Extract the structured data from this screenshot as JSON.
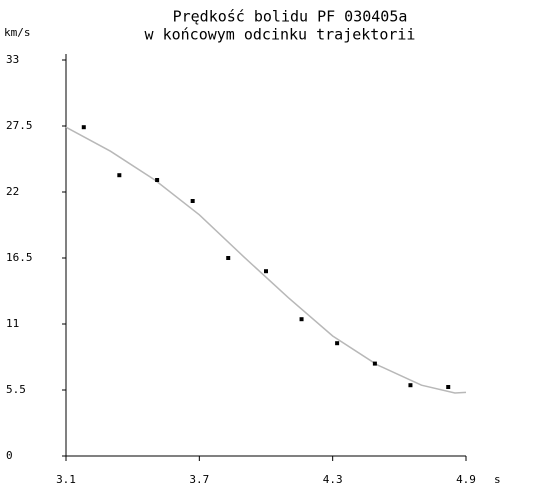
{
  "chart_data": {
    "type": "scatter",
    "title": [
      "Prędkość bolidu PF 030405a",
      "w końcowym odcinku trajektorii"
    ],
    "y_label": "km/s",
    "x_label": "s",
    "xlim": [
      3.1,
      4.9
    ],
    "xticks": [
      3.1,
      3.7,
      4.3,
      4.9
    ],
    "ylim": [
      0,
      33
    ],
    "yticks": [
      0,
      5.5,
      11,
      16.5,
      22,
      27.5,
      33
    ],
    "series": [
      {
        "type": "line",
        "color": "#b8b8b8",
        "x": [
          3.1,
          3.3,
          3.5,
          3.7,
          3.9,
          4.1,
          4.3,
          4.5,
          4.7,
          4.85,
          4.9
        ],
        "values": [
          27.4,
          25.4,
          23.0,
          20.1,
          16.6,
          13.2,
          10.0,
          7.6,
          5.9,
          5.25,
          5.3
        ]
      },
      {
        "type": "scatter",
        "color": "#000000",
        "x": [
          3.18,
          3.34,
          3.51,
          3.67,
          3.83,
          4.0,
          4.16,
          4.32,
          4.49,
          4.65,
          4.82
        ],
        "values": [
          27.4,
          23.4,
          23.0,
          21.25,
          16.5,
          15.4,
          11.4,
          9.4,
          7.7,
          5.9,
          5.75
        ]
      }
    ]
  }
}
